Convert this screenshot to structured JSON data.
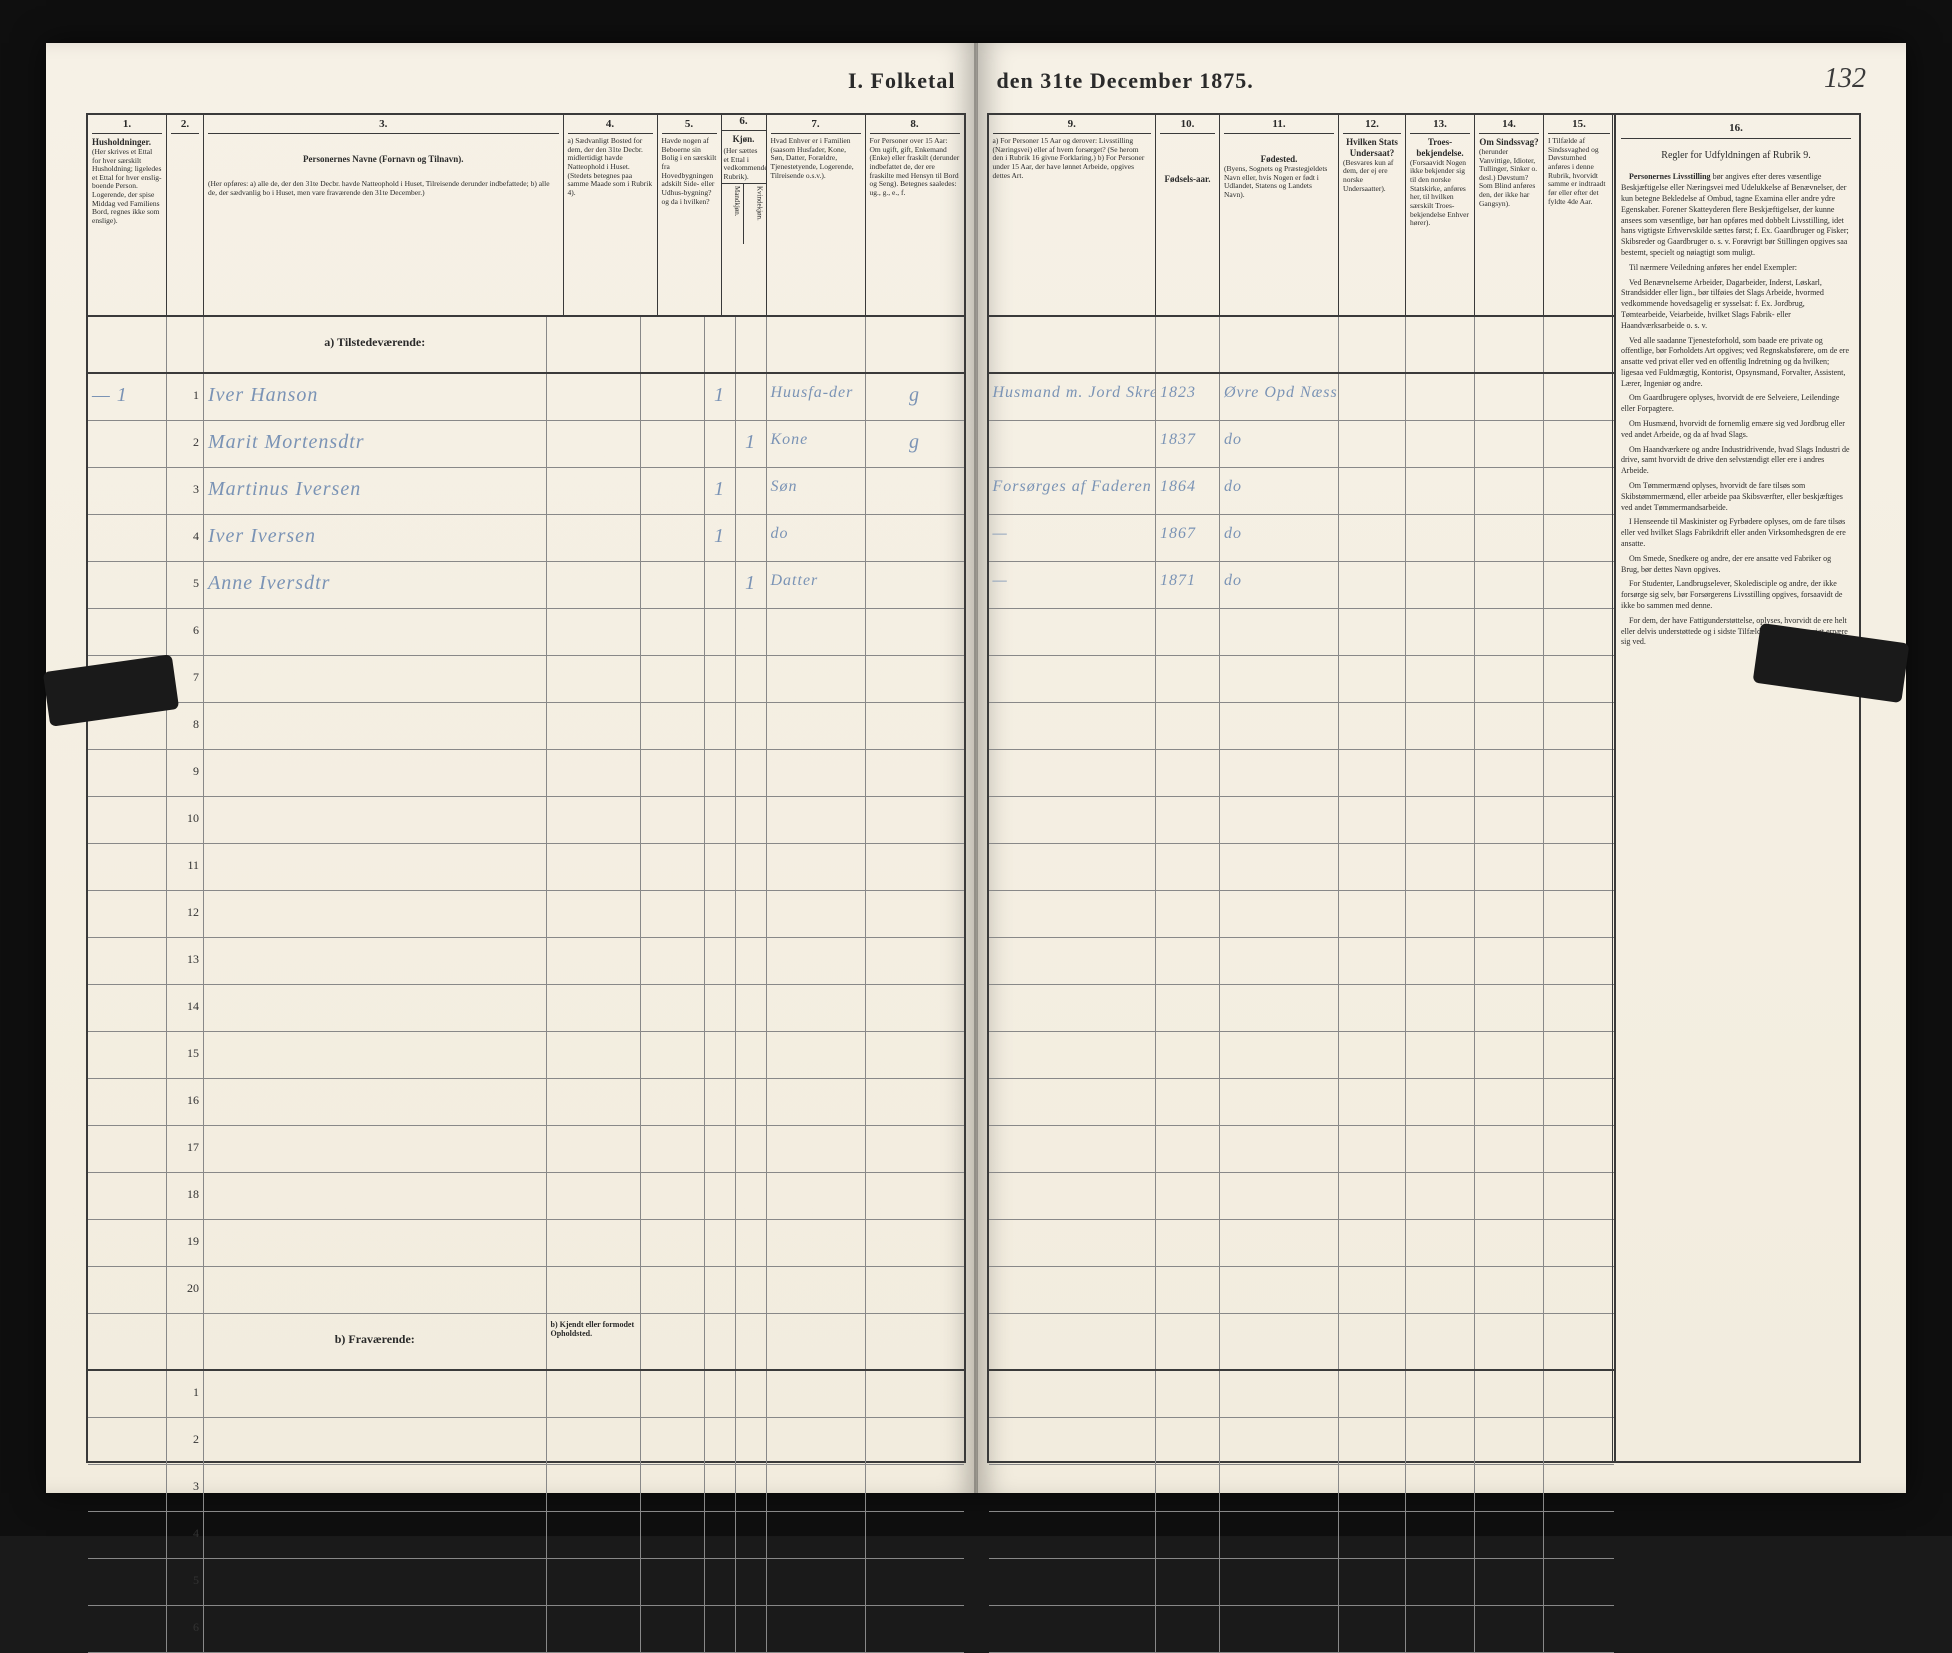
{
  "document": {
    "title_left": "I.  Folketal",
    "title_right": "den 31te December 1875.",
    "page_number": "132"
  },
  "columns_left": {
    "c1": {
      "num": "1.",
      "title": "Husholdninger.",
      "text": "(Her skrives et Ettal for hver særskilt Husholdning; ligeledes et Ettal for hver enslig-boende Person. Logerende, der spise Middag ved Familiens Bord, regnes ikke som enslige)."
    },
    "c2": {
      "num": "2.",
      "title": "",
      "text": ""
    },
    "c3": {
      "num": "3.",
      "title": "Personernes Navne (Fornavn og Tilnavn).",
      "text": "(Her opføres: a) alle de, der den 31te Decbr. havde Natteophold i Huset, Tilreisende derunder indbefattede; b) alle de, der sædvanlig bo i Huset, men vare fraværende den 31te December.)"
    },
    "c4": {
      "num": "4.",
      "title": "",
      "text": "a) Sædvanligt Bosted for dem, der den 31te Decbr. midlertidigt havde Natteophold i Huset. (Stedets betegnes paa samme Maade som i Rubrik 4)."
    },
    "c5": {
      "num": "5.",
      "title": "",
      "text": "Havde nogen af Beboerne sin Bolig i en særskilt fra Hovedbygningen adskilt Side- eller Udhus-bygning? og da i hvilken?"
    },
    "c6": {
      "num": "6.",
      "title": "Kjøn.",
      "text": "(Her sættes et Ettal i vedkommende Rubrik)."
    },
    "c6a": {
      "text": "Mandkjøn."
    },
    "c6b": {
      "text": "Kvindekjøn."
    },
    "c7": {
      "num": "7.",
      "title": "",
      "text": "Hvad Enhver er i Familien (saasom Husfader, Kone, Søn, Datter, Forældre, Tjenestetyende, Logerende, Tilreisende o.s.v.)."
    },
    "c8": {
      "num": "8.",
      "title": "",
      "text": "For Personer over 15 Aar: Om ugift, gift, Enkemand (Enke) eller fraskilt (derunder indbefattet de, der ere fraskilte med Hensyn til Bord og Seng). Betegnes saaledes: ug., g., e., f."
    }
  },
  "columns_right": {
    "c9": {
      "num": "9.",
      "title": "",
      "text": "a) For Personer 15 Aar og derover: Livsstilling (Næringsvei) eller af hvem forsørget? (Se herom den i Rubrik 16 givne Forklaring.) b) For Personer under 15 Aar, der have lønnet Arbeide, opgives dettes Art."
    },
    "c10": {
      "num": "10.",
      "title": "Fødsels-aar.",
      "text": ""
    },
    "c11": {
      "num": "11.",
      "title": "Fødested.",
      "text": "(Byens, Sognets og Præstegjeldets Navn eller, hvis Nogen er født i Udlandet, Statens og Landets Navn)."
    },
    "c12": {
      "num": "12.",
      "title": "Hvilken Stats Undersaat?",
      "text": "(Besvares kun af dem, der ej ere norske Undersaatter)."
    },
    "c13": {
      "num": "13.",
      "title": "Troes-bekjendelse.",
      "text": "(Forsaavidt Nogen ikke bekjender sig til den norske Statskirke, anføres her, til hvilken særskilt Troes-bekjendelse Enhver hører)."
    },
    "c14": {
      "num": "14.",
      "title": "Om Sindssvag?",
      "text": "(herunder Vanvittige, Idioter, Tullinger, Sinker o. desl.) Døvstum? Som Blind anføres den, der ikke har Gangsyn)."
    },
    "c15": {
      "num": "15.",
      "title": "",
      "text": "I Tilfælde af Sindssvaghed og Døvstumhed anføres i denne Rubrik, hvorvidt samme er indtraadt før eller efter det fyldte 4de Aar."
    },
    "c16": {
      "num": "16.",
      "title": "Regler for Udfyldningen af Rubrik 9.",
      "text": ""
    }
  },
  "section_labels": {
    "present": "a) Tilstedeværende:",
    "absent": "b) Fraværende:",
    "col4_absent": "b) Kjendt eller formodet Opholdsted."
  },
  "rows": [
    {
      "n": "1",
      "name": "Iver Hanson",
      "c4": "",
      "c6a": "1",
      "c6b": "",
      "c7": "Huusfa-der",
      "c8": "g",
      "c9": "Husmand m. Jord Skredder",
      "c10": "1823",
      "c11": "Øvre Opd Næsset"
    },
    {
      "n": "2",
      "name": "Marit Mortensdtr",
      "c4": "",
      "c6a": "",
      "c6b": "1",
      "c7": "Kone",
      "c8": "g",
      "c9": "",
      "c10": "1837",
      "c11": "do"
    },
    {
      "n": "3",
      "name": "Martinus Iversen",
      "c4": "",
      "c6a": "1",
      "c6b": "",
      "c7": "Søn",
      "c8": "",
      "c9": "Forsørges af Faderen",
      "c10": "1864",
      "c11": "do"
    },
    {
      "n": "4",
      "name": "Iver Iversen",
      "c4": "",
      "c6a": "1",
      "c6b": "",
      "c7": "do",
      "c8": "",
      "c9": "—",
      "c10": "1867",
      "c11": "do"
    },
    {
      "n": "5",
      "name": "Anne Iversdtr",
      "c4": "",
      "c6a": "",
      "c6b": "1",
      "c7": "Datter",
      "c8": "",
      "c9": "—",
      "c10": "1871",
      "c11": "do"
    }
  ],
  "empty_rows_a": [
    "6",
    "7",
    "8",
    "9",
    "10",
    "11",
    "12",
    "13",
    "14",
    "15",
    "16",
    "17",
    "18",
    "19",
    "20"
  ],
  "empty_rows_b": [
    "1",
    "2",
    "3",
    "4",
    "5",
    "6"
  ],
  "instructions": {
    "heading": "Personernes Livsstilling",
    "p1": "bør angives efter deres væsentlige Beskjæftigelse eller Næringsvei med Udelukkelse af Benævnelser, der kun betegne Bekledelse af Ombud, tagne Examina eller andre ydre Egenskaber. Forener Skatteyderen flere Beskjæftigelser, der kunne ansees som væsentlige, bør han opføres med dobbelt Livsstilling, idet hans vigtigste Erhvervskilde sættes først; f. Ex. Gaardbruger og Fisker; Skibsreder og Gaardbruger o. s. v. Forøvrigt bør Stillingen opgives saa bestemt, specielt og nøiagtigt som muligt.",
    "p2": "Til nærmere Veiledning anføres her endel Exempler:",
    "p3": "Ved Benævnelserne Arbeider, Dagarbeider, Inderst, Løskarl, Strandsidder eller lign., bør tilføies det Slags Arbeide, hvormed vedkommende hovedsagelig er sysselsat: f. Ex. Jordbrug, Tømtearbeide, Veiarbeide, hvilket Slags Fabrik- eller Haandværksarbeide o. s. v.",
    "p4": "Ved alle saadanne Tjenesteforhold, som baade ere private og offentlige, bør Forholdets Art opgives; ved Regnskabsførere, om de ere ansatte ved privat eller ved en offentlig Indretning og da hvilken; ligesaa ved Fuldmægtig, Kontorist, Opsynsmand, Forvalter, Assistent, Lærer, Ingeniør og andre.",
    "p5": "Om Gaardbrugere oplyses, hvorvidt de ere Selveiere, Leilendinge eller Forpagtere.",
    "p6": "Om Husmænd, hvorvidt de fornemlig ernære sig ved Jordbrug eller ved andet Arbeide, og da af hvad Slags.",
    "p7": "Om Haandværkere og andre Industridrivende, hvad Slags Industri de drive, samt hvorvidt de drive den selvstændigt eller ere i andres Arbeide.",
    "p8": "Om Tømmermænd oplyses, hvorvidt de fare tilsøs som Skibstømmermænd, eller arbeide paa Skibsværfter, eller beskjæftiges ved andet Tømmermandsarbeide.",
    "p9": "I Henseende til Maskinister og Fyrbødere oplyses, om de fare tilsøs eller ved hvilket Slags Fabrikdrift eller anden Virksomhedsgren de ere ansatte.",
    "p10": "Om Smede, Snedkere og andre, der ere ansatte ved Fabriker og Brug, bør dettes Navn opgives.",
    "p11": "For Studenter, Landbrugselever, Skoledisciple og andre, der ikke forsørge sig selv, bør Forsørgerens Livsstilling opgives, forsaavidt de ikke bo sammen med denne.",
    "p12": "For dem, der have Fattigunderstøttelse, oplyses, hvorvidt de ere helt eller delvis understøttede og i sidste Tilfælde, hvad de forøvrigt ernære sig ved."
  }
}
